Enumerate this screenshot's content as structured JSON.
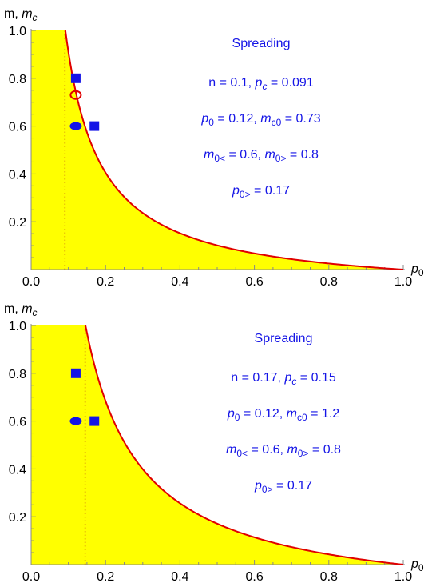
{
  "chart_data": [
    {
      "type": "line",
      "title": "",
      "xlabel": "p",
      "xlabel_sub": "0",
      "ylabel": "m, m",
      "ylabel_sub": "c",
      "xlim": [
        0,
        1
      ],
      "ylim": [
        0,
        1
      ],
      "xticks": [
        "0.0",
        "0.2",
        "0.4",
        "0.6",
        "0.8",
        "1.0"
      ],
      "yticks": [
        "0.2",
        "0.4",
        "0.6",
        "0.8",
        "1.0"
      ],
      "fill_color": "#ffff00",
      "curve_color": "#e00000",
      "marker_color": "#1414e6",
      "n": 0.1,
      "pc": 0.091,
      "curve_xmin": 0.092,
      "open_circle": {
        "x": 0.12,
        "y": 0.73
      },
      "squares": [
        {
          "x": 0.12,
          "y": 0.8
        },
        {
          "x": 0.17,
          "y": 0.6
        }
      ],
      "ellipse": {
        "x": 0.12,
        "y": 0.6
      },
      "annotations": {
        "heading": "Spreading",
        "line1": {
          "a": "n = 0.1, ",
          "b": "p",
          "b_sub": "c",
          "c": " = 0.091"
        },
        "line2": {
          "a": "p",
          "a_sub": "0",
          "b": " = 0.12, ",
          "c": "m",
          "c_sub": "c0",
          "d": " = 0.73"
        },
        "line3": {
          "a": "m",
          "a_sub": "0<",
          "b": " = 0.6, ",
          "c": "m",
          "c_sub": "0>",
          "d": " = 0.8"
        },
        "line4": {
          "a": "p",
          "a_sub": "0>",
          "b": " = 0.17"
        }
      }
    },
    {
      "type": "line",
      "title": "",
      "xlabel": "p",
      "xlabel_sub": "0",
      "ylabel": "m, m",
      "ylabel_sub": "c",
      "xlim": [
        0,
        1
      ],
      "ylim": [
        0,
        1
      ],
      "xticks": [
        "0.0",
        "0.2",
        "0.4",
        "0.6",
        "0.8",
        "1.0"
      ],
      "yticks": [
        "0.2",
        "0.4",
        "0.6",
        "0.8",
        "1.0"
      ],
      "fill_color": "#ffff00",
      "curve_color": "#e00000",
      "marker_color": "#1414e6",
      "n": 0.17,
      "pc": 0.145,
      "curve_xmin": 0.146,
      "open_circle": null,
      "squares": [
        {
          "x": 0.12,
          "y": 0.8
        },
        {
          "x": 0.17,
          "y": 0.6
        }
      ],
      "ellipse": {
        "x": 0.12,
        "y": 0.6
      },
      "annotations": {
        "heading": "Spreading",
        "line1": {
          "a": "n = 0.17, ",
          "b": "p",
          "b_sub": "c",
          "c": " = 0.15"
        },
        "line2": {
          "a": "p",
          "a_sub": "0",
          "b": " = 0.12, ",
          "c": "m",
          "c_sub": "c0",
          "d": " = 1.2"
        },
        "line3": {
          "a": "m",
          "a_sub": "0<",
          "b": " = 0.6, ",
          "c": "m",
          "c_sub": "0>",
          "d": " = 0.8"
        },
        "line4": {
          "a": "p",
          "a_sub": "0>",
          "b": " = 0.17"
        }
      }
    }
  ]
}
